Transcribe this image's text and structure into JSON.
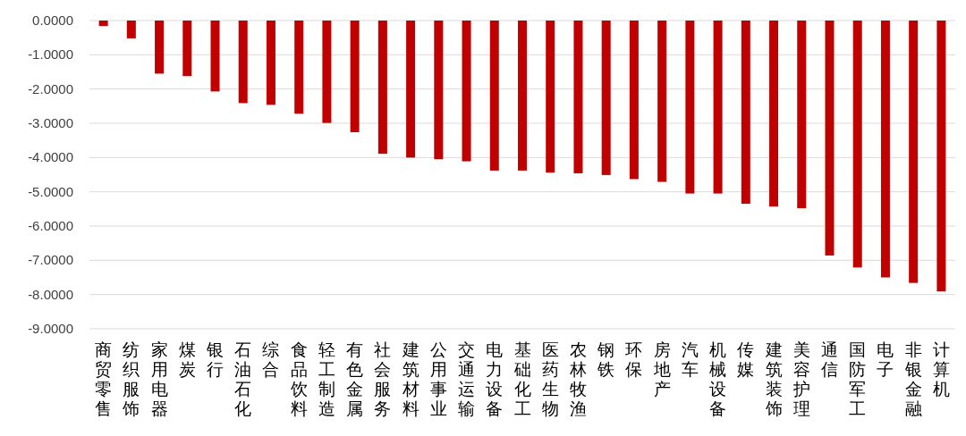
{
  "chart_data": {
    "type": "bar",
    "categories": [
      "商贸零售",
      "纺织服饰",
      "家用电器",
      "煤炭",
      "银行",
      "石油石化",
      "综合",
      "食品饮料",
      "轻工制造",
      "有色金属",
      "社会服务",
      "建筑材料",
      "公用事业",
      "交通运输",
      "电力设备",
      "基础化工",
      "医药生物",
      "农林牧渔",
      "钢铁",
      "环保",
      "房地产",
      "汽车",
      "机械设备",
      "传媒",
      "建筑装饰",
      "美容护理",
      "通信",
      "国防军工",
      "电子",
      "非银金融",
      "计算机"
    ],
    "values": [
      -0.16,
      -0.52,
      -1.55,
      -1.62,
      -2.07,
      -2.41,
      -2.46,
      -2.72,
      -2.99,
      -3.26,
      -3.89,
      -4.0,
      -4.05,
      -4.11,
      -4.38,
      -4.38,
      -4.44,
      -4.46,
      -4.51,
      -4.63,
      -4.71,
      -5.05,
      -5.05,
      -5.35,
      -5.43,
      -5.48,
      -6.86,
      -7.21,
      -7.5,
      -7.66,
      -7.91
    ],
    "color": "#c00000",
    "ylim": [
      -9,
      0
    ],
    "yticks": [
      {
        "value": 0,
        "label": "0.0000"
      },
      {
        "value": -1,
        "label": "-1.0000"
      },
      {
        "value": -2,
        "label": "-2.0000"
      },
      {
        "value": -3,
        "label": "-3.0000"
      },
      {
        "value": -4,
        "label": "-4.0000"
      },
      {
        "value": -5,
        "label": "-5.0000"
      },
      {
        "value": -6,
        "label": "-6.0000"
      },
      {
        "value": -7,
        "label": "-7.0000"
      },
      {
        "value": -8,
        "label": "-8.0000"
      },
      {
        "value": -9,
        "label": "-9.0000"
      }
    ],
    "grid": "y"
  }
}
